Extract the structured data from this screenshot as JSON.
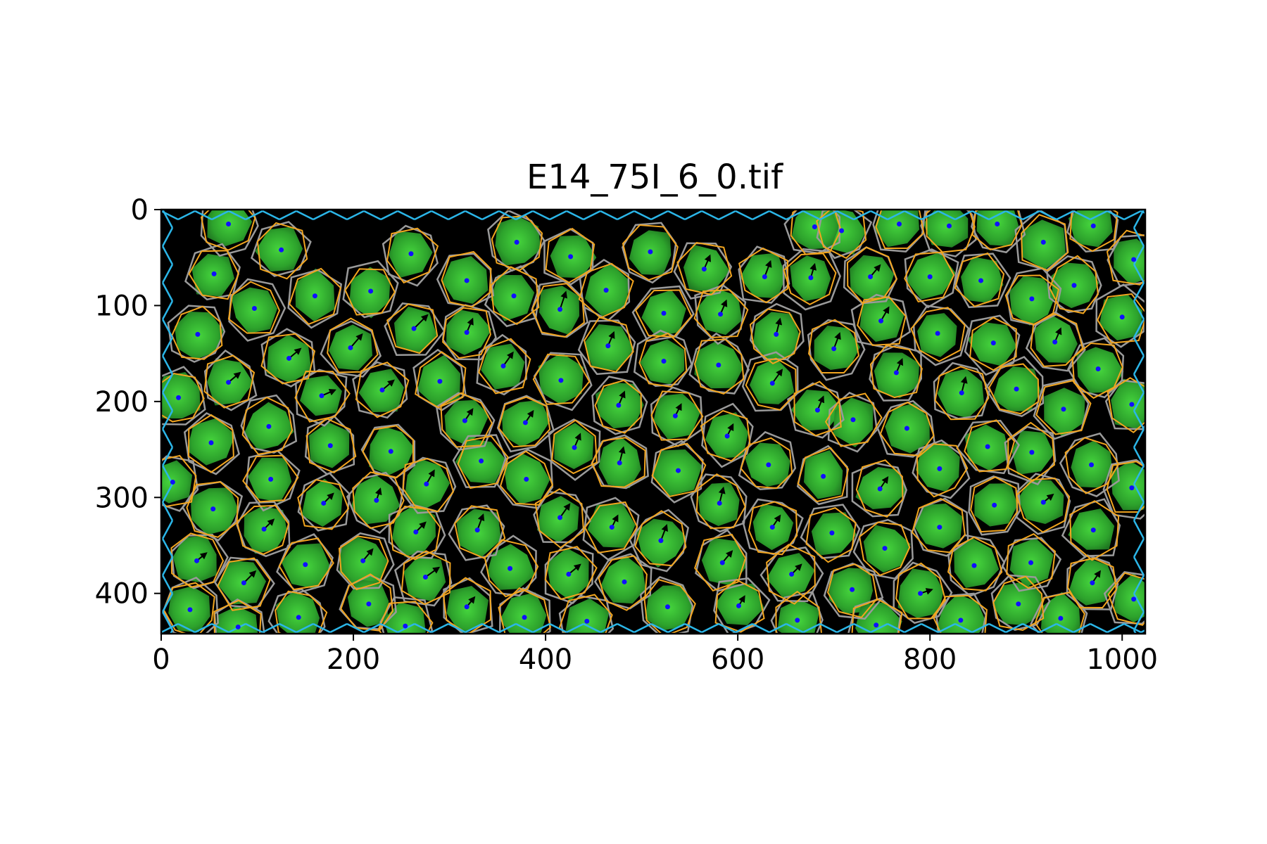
{
  "figure": {
    "title": "E14_75I_6_0.tif"
  },
  "image": {
    "description_colors": {
      "background": "#000000",
      "cell_fill": "#2aa52a",
      "cell_core": "#3fcf3a",
      "orange_outline": "#f2a51f",
      "gray_network": "#9a9a9a",
      "edge_network": "#2bb6e8",
      "centroid_dot": "#1010ff",
      "arrow": "#000000"
    },
    "x_range": [
      0,
      1024
    ],
    "y_range": [
      0,
      442
    ]
  },
  "axes": {
    "x_ticks": [
      "0",
      "200",
      "400",
      "600",
      "800",
      "1000"
    ],
    "x_tick_values": [
      0,
      200,
      400,
      600,
      800,
      1000
    ],
    "y_ticks": [
      "0",
      "100",
      "200",
      "300",
      "400"
    ],
    "y_tick_values": [
      0,
      100,
      200,
      300,
      400
    ]
  },
  "cells": [
    {
      "x": 70,
      "y": 15,
      "ax": 0,
      "ay": 0
    },
    {
      "x": 125,
      "y": 42,
      "ax": 0,
      "ay": 0
    },
    {
      "x": 55,
      "y": 67,
      "ax": 0,
      "ay": 0
    },
    {
      "x": 160,
      "y": 90,
      "ax": 0,
      "ay": 0
    },
    {
      "x": 97,
      "y": 103,
      "ax": 0,
      "ay": 0
    },
    {
      "x": 38,
      "y": 130,
      "ax": 0,
      "ay": 0
    },
    {
      "x": 218,
      "y": 85,
      "ax": 0,
      "ay": 0
    },
    {
      "x": 260,
      "y": 46,
      "ax": 0,
      "ay": 0
    },
    {
      "x": 318,
      "y": 74,
      "ax": 0,
      "ay": 0
    },
    {
      "x": 370,
      "y": 34,
      "ax": 0,
      "ay": 0
    },
    {
      "x": 367,
      "y": 90,
      "ax": 0,
      "ay": 0
    },
    {
      "x": 426,
      "y": 49,
      "ax": 0,
      "ay": 0
    },
    {
      "x": 463,
      "y": 84,
      "ax": 0,
      "ay": 0
    },
    {
      "x": 509,
      "y": 44,
      "ax": 0,
      "ay": 0
    },
    {
      "x": 415,
      "y": 104,
      "ax": 6,
      "ay": -18
    },
    {
      "x": 263,
      "y": 124,
      "ax": 14,
      "ay": -14
    },
    {
      "x": 318,
      "y": 128,
      "ax": 6,
      "ay": -14
    },
    {
      "x": 197,
      "y": 144,
      "ax": 12,
      "ay": -14
    },
    {
      "x": 133,
      "y": 155,
      "ax": 12,
      "ay": -10
    },
    {
      "x": 70,
      "y": 180,
      "ax": 12,
      "ay": -10
    },
    {
      "x": 18,
      "y": 196,
      "ax": 0,
      "ay": 0
    },
    {
      "x": 167,
      "y": 194,
      "ax": 14,
      "ay": -6
    },
    {
      "x": 230,
      "y": 188,
      "ax": 12,
      "ay": -10
    },
    {
      "x": 290,
      "y": 179,
      "ax": 0,
      "ay": 0
    },
    {
      "x": 356,
      "y": 163,
      "ax": 10,
      "ay": -14
    },
    {
      "x": 416,
      "y": 178,
      "ax": 0,
      "ay": 0
    },
    {
      "x": 465,
      "y": 142,
      "ax": 6,
      "ay": -14
    },
    {
      "x": 523,
      "y": 108,
      "ax": 0,
      "ay": 0
    },
    {
      "x": 565,
      "y": 62,
      "ax": 6,
      "ay": -14
    },
    {
      "x": 628,
      "y": 70,
      "ax": 6,
      "ay": -16
    },
    {
      "x": 676,
      "y": 71,
      "ax": 4,
      "ay": -14
    },
    {
      "x": 738,
      "y": 70,
      "ax": 10,
      "ay": -12
    },
    {
      "x": 708,
      "y": 22,
      "ax": 0,
      "ay": 0
    },
    {
      "x": 768,
      "y": 15,
      "ax": 0,
      "ay": 0
    },
    {
      "x": 820,
      "y": 17,
      "ax": 0,
      "ay": 0
    },
    {
      "x": 870,
      "y": 15,
      "ax": 0,
      "ay": 0
    },
    {
      "x": 918,
      "y": 34,
      "ax": 0,
      "ay": 0
    },
    {
      "x": 970,
      "y": 17,
      "ax": 0,
      "ay": 0
    },
    {
      "x": 1012,
      "y": 52,
      "ax": 0,
      "ay": 0
    },
    {
      "x": 680,
      "y": 18,
      "ax": 0,
      "ay": 0
    },
    {
      "x": 800,
      "y": 70,
      "ax": 0,
      "ay": 0
    },
    {
      "x": 853,
      "y": 74,
      "ax": 0,
      "ay": 0
    },
    {
      "x": 906,
      "y": 93,
      "ax": 0,
      "ay": 0
    },
    {
      "x": 950,
      "y": 79,
      "ax": 0,
      "ay": 0
    },
    {
      "x": 1000,
      "y": 112,
      "ax": 0,
      "ay": 0
    },
    {
      "x": 582,
      "y": 109,
      "ax": 6,
      "ay": -14
    },
    {
      "x": 640,
      "y": 130,
      "ax": 4,
      "ay": -16
    },
    {
      "x": 700,
      "y": 145,
      "ax": 6,
      "ay": -16
    },
    {
      "x": 749,
      "y": 116,
      "ax": 8,
      "ay": -14
    },
    {
      "x": 808,
      "y": 129,
      "ax": 0,
      "ay": 0
    },
    {
      "x": 866,
      "y": 139,
      "ax": 0,
      "ay": 0
    },
    {
      "x": 930,
      "y": 138,
      "ax": 6,
      "ay": -14
    },
    {
      "x": 975,
      "y": 166,
      "ax": 0,
      "ay": 0
    },
    {
      "x": 1010,
      "y": 203,
      "ax": 0,
      "ay": 0
    },
    {
      "x": 523,
      "y": 158,
      "ax": 0,
      "ay": 0
    },
    {
      "x": 580,
      "y": 162,
      "ax": 0,
      "ay": 0
    },
    {
      "x": 636,
      "y": 181,
      "ax": 10,
      "ay": -14
    },
    {
      "x": 683,
      "y": 209,
      "ax": 6,
      "ay": -14
    },
    {
      "x": 765,
      "y": 170,
      "ax": 6,
      "ay": -14
    },
    {
      "x": 833,
      "y": 191,
      "ax": 4,
      "ay": -16
    },
    {
      "x": 890,
      "y": 187,
      "ax": 0,
      "ay": 0
    },
    {
      "x": 939,
      "y": 208,
      "ax": 0,
      "ay": 0
    },
    {
      "x": 476,
      "y": 204,
      "ax": 6,
      "ay": -14
    },
    {
      "x": 535,
      "y": 215,
      "ax": 6,
      "ay": -12
    },
    {
      "x": 589,
      "y": 236,
      "ax": 6,
      "ay": -12
    },
    {
      "x": 632,
      "y": 266,
      "ax": 0,
      "ay": 0
    },
    {
      "x": 689,
      "y": 278,
      "ax": 0,
      "ay": 0
    },
    {
      "x": 720,
      "y": 219,
      "ax": 0,
      "ay": 0
    },
    {
      "x": 776,
      "y": 228,
      "ax": 0,
      "ay": 0
    },
    {
      "x": 810,
      "y": 270,
      "ax": 0,
      "ay": 0
    },
    {
      "x": 860,
      "y": 247,
      "ax": 0,
      "ay": 0
    },
    {
      "x": 906,
      "y": 253,
      "ax": 0,
      "ay": 0
    },
    {
      "x": 968,
      "y": 266,
      "ax": 0,
      "ay": 0
    },
    {
      "x": 316,
      "y": 220,
      "ax": 8,
      "ay": -12
    },
    {
      "x": 379,
      "y": 222,
      "ax": 8,
      "ay": -12
    },
    {
      "x": 430,
      "y": 248,
      "ax": 6,
      "ay": -14
    },
    {
      "x": 477,
      "y": 264,
      "ax": 4,
      "ay": -16
    },
    {
      "x": 538,
      "y": 272,
      "ax": 0,
      "ay": 0
    },
    {
      "x": 52,
      "y": 243,
      "ax": 0,
      "ay": 0
    },
    {
      "x": 112,
      "y": 226,
      "ax": 0,
      "ay": 0
    },
    {
      "x": 176,
      "y": 246,
      "ax": 0,
      "ay": 0
    },
    {
      "x": 239,
      "y": 252,
      "ax": 0,
      "ay": 0
    },
    {
      "x": 276,
      "y": 286,
      "ax": 8,
      "ay": -14
    },
    {
      "x": 333,
      "y": 262,
      "ax": 0,
      "ay": 0
    },
    {
      "x": 380,
      "y": 281,
      "ax": 0,
      "ay": 0
    },
    {
      "x": 12,
      "y": 284,
      "ax": 0,
      "ay": 0
    },
    {
      "x": 114,
      "y": 281,
      "ax": 0,
      "ay": 0
    },
    {
      "x": 54,
      "y": 312,
      "ax": 0,
      "ay": 0
    },
    {
      "x": 169,
      "y": 306,
      "ax": 10,
      "ay": -10
    },
    {
      "x": 224,
      "y": 303,
      "ax": 4,
      "ay": -12
    },
    {
      "x": 265,
      "y": 336,
      "ax": 10,
      "ay": -10
    },
    {
      "x": 329,
      "y": 334,
      "ax": 6,
      "ay": -16
    },
    {
      "x": 415,
      "y": 321,
      "ax": 10,
      "ay": -14
    },
    {
      "x": 469,
      "y": 331,
      "ax": 6,
      "ay": -12
    },
    {
      "x": 520,
      "y": 345,
      "ax": 6,
      "ay": -16
    },
    {
      "x": 581,
      "y": 306,
      "ax": 4,
      "ay": -16
    },
    {
      "x": 636,
      "y": 331,
      "ax": 8,
      "ay": -12
    },
    {
      "x": 698,
      "y": 337,
      "ax": 0,
      "ay": 0
    },
    {
      "x": 753,
      "y": 353,
      "ax": 0,
      "ay": 0
    },
    {
      "x": 748,
      "y": 291,
      "ax": 8,
      "ay": -12
    },
    {
      "x": 810,
      "y": 331,
      "ax": 0,
      "ay": 0
    },
    {
      "x": 867,
      "y": 308,
      "ax": 0,
      "ay": 0
    },
    {
      "x": 918,
      "y": 305,
      "ax": 10,
      "ay": -8
    },
    {
      "x": 970,
      "y": 334,
      "ax": 0,
      "ay": 0
    },
    {
      "x": 1010,
      "y": 290,
      "ax": 0,
      "ay": 0
    },
    {
      "x": 107,
      "y": 333,
      "ax": 10,
      "ay": -10
    },
    {
      "x": 37,
      "y": 366,
      "ax": 10,
      "ay": -8
    },
    {
      "x": 150,
      "y": 370,
      "ax": 0,
      "ay": 0
    },
    {
      "x": 86,
      "y": 389,
      "ax": 12,
      "ay": -12
    },
    {
      "x": 210,
      "y": 366,
      "ax": 10,
      "ay": -12
    },
    {
      "x": 275,
      "y": 383,
      "ax": 14,
      "ay": -10
    },
    {
      "x": 363,
      "y": 374,
      "ax": 0,
      "ay": 0
    },
    {
      "x": 424,
      "y": 380,
      "ax": 12,
      "ay": -10
    },
    {
      "x": 482,
      "y": 388,
      "ax": 0,
      "ay": 0
    },
    {
      "x": 584,
      "y": 368,
      "ax": 10,
      "ay": -12
    },
    {
      "x": 656,
      "y": 380,
      "ax": 10,
      "ay": -10
    },
    {
      "x": 719,
      "y": 396,
      "ax": 0,
      "ay": 0
    },
    {
      "x": 790,
      "y": 400,
      "ax": 12,
      "ay": -4
    },
    {
      "x": 846,
      "y": 371,
      "ax": 0,
      "ay": 0
    },
    {
      "x": 905,
      "y": 368,
      "ax": 0,
      "ay": 0
    },
    {
      "x": 969,
      "y": 389,
      "ax": 8,
      "ay": -12
    },
    {
      "x": 1012,
      "y": 406,
      "ax": 0,
      "ay": 0
    },
    {
      "x": 318,
      "y": 414,
      "ax": 8,
      "ay": -10
    },
    {
      "x": 30,
      "y": 417,
      "ax": 0,
      "ay": 0
    },
    {
      "x": 143,
      "y": 425,
      "ax": 0,
      "ay": 0
    },
    {
      "x": 216,
      "y": 411,
      "ax": 0,
      "ay": 0
    },
    {
      "x": 378,
      "y": 425,
      "ax": 0,
      "ay": 0
    },
    {
      "x": 443,
      "y": 429,
      "ax": 0,
      "ay": 0
    },
    {
      "x": 527,
      "y": 414,
      "ax": 0,
      "ay": 0
    },
    {
      "x": 601,
      "y": 413,
      "ax": 6,
      "ay": -10
    },
    {
      "x": 662,
      "y": 428,
      "ax": 0,
      "ay": 0
    },
    {
      "x": 744,
      "y": 433,
      "ax": 0,
      "ay": 0
    },
    {
      "x": 832,
      "y": 428,
      "ax": 0,
      "ay": 0
    },
    {
      "x": 892,
      "y": 411,
      "ax": 0,
      "ay": 0
    },
    {
      "x": 936,
      "y": 426,
      "ax": 0,
      "ay": 0
    },
    {
      "x": 80,
      "y": 435,
      "ax": 0,
      "ay": 0
    },
    {
      "x": 254,
      "y": 434,
      "ax": 0,
      "ay": 0
    }
  ]
}
